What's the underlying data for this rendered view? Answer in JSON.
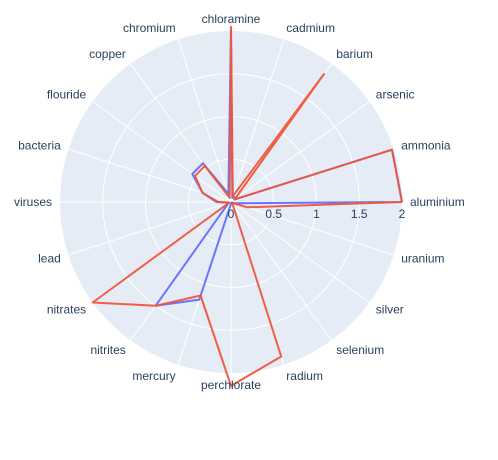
{
  "chart_data": {
    "type": "polar-line",
    "categories": [
      "aluminium",
      "ammonia",
      "arsenic",
      "barium",
      "cadmium",
      "chloramine",
      "chromium",
      "copper",
      "flouride",
      "bacteria",
      "viruses",
      "lead",
      "nitrates",
      "nitrites",
      "mercury",
      "perchlorate",
      "radium",
      "selenium",
      "silver",
      "uranium"
    ],
    "radial_range": [
      0,
      2
    ],
    "radial_ticks": [
      {
        "value": 0,
        "label": "0"
      },
      {
        "value": 0.5,
        "label": "0.5"
      },
      {
        "value": 1,
        "label": "1"
      },
      {
        "value": 1.5,
        "label": "1.5"
      },
      {
        "value": 2,
        "label": "2"
      }
    ],
    "background_color": "#e5ecf6",
    "grid_color": "#ffffff",
    "grid": true,
    "legend": "none",
    "series": [
      {
        "color": "#636efa",
        "values": [
          2.0,
          1.98,
          0.05,
          0.07,
          0.05,
          2.02,
          0.1,
          0.56,
          0.56,
          0.35,
          0.17,
          0.03,
          0.05,
          1.5,
          1.2,
          0.02,
          0.03,
          0.01,
          0.01,
          0.05
        ]
      },
      {
        "color": "#ef553b",
        "values": [
          2.0,
          1.98,
          0.05,
          1.85,
          0.07,
          2.05,
          0.05,
          0.52,
          0.52,
          0.35,
          0.15,
          0.02,
          2.0,
          1.5,
          1.15,
          2.15,
          1.9,
          0.03,
          0.02,
          0.2
        ]
      }
    ]
  }
}
